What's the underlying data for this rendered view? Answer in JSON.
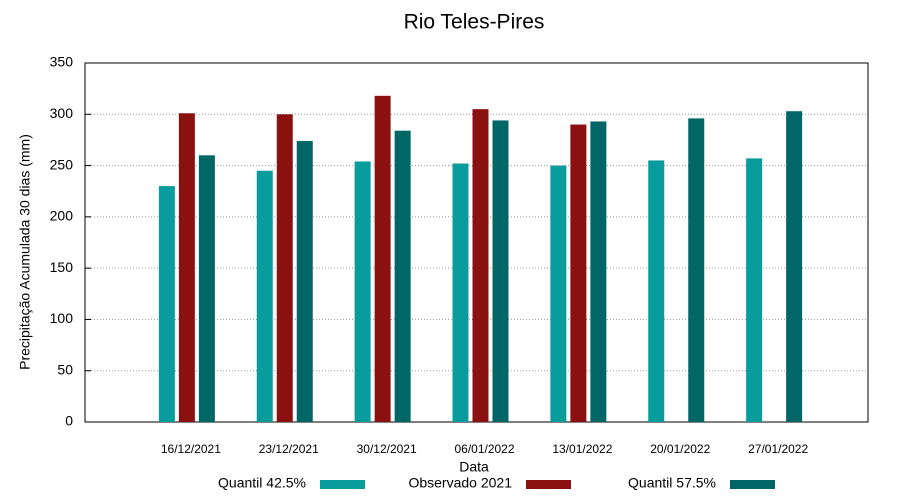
{
  "chart_data": {
    "type": "bar",
    "title": "Rio Teles-Pires",
    "x_label": "Data",
    "y_label": "Precipitação Acumulada 30 dias (mm)",
    "categories": [
      "16/12/2021",
      "23/12/2021",
      "30/12/2021",
      "06/01/2022",
      "13/01/2022",
      "20/01/2022",
      "27/01/2022"
    ],
    "series": [
      {
        "name": "Quantil 42.5%",
        "color": "#089c9c",
        "values": [
          230,
          245,
          254,
          252,
          250,
          255,
          257
        ]
      },
      {
        "name": "Observado 2021",
        "color": "#8b1010",
        "values": [
          301,
          300,
          318,
          305,
          290,
          null,
          null
        ]
      },
      {
        "name": "Quantil 57.5%",
        "color": "#006666",
        "values": [
          260,
          274,
          284,
          294,
          293,
          296,
          303
        ]
      }
    ],
    "ylim": [
      0,
      350
    ],
    "yticks": [
      0,
      50,
      100,
      150,
      200,
      250,
      300,
      350
    ],
    "grid": true
  }
}
